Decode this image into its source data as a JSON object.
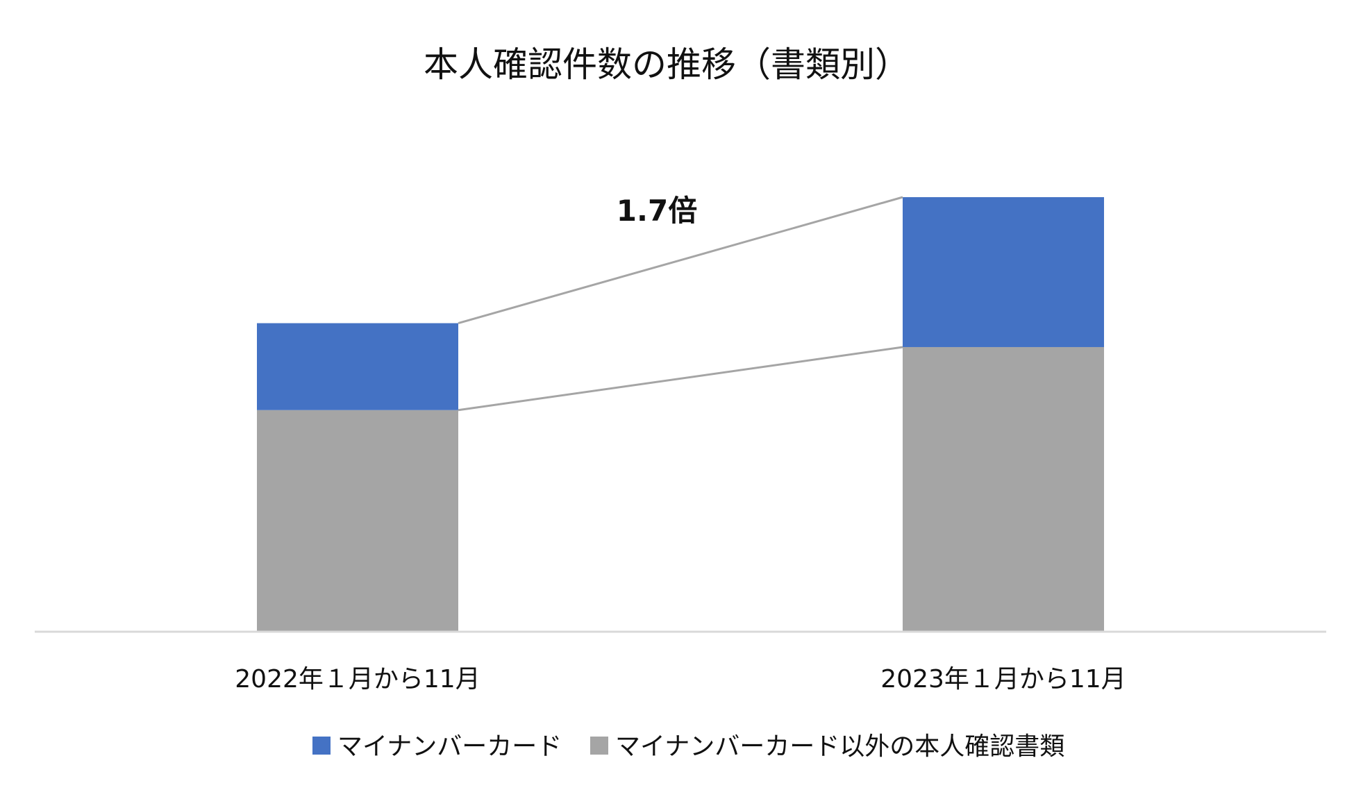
{
  "chart_data": {
    "type": "bar",
    "stacked": true,
    "title": "本人確認件数の推移（書類別）",
    "categories": [
      "2022年１月から11月",
      "2023年１月から11月"
    ],
    "series": [
      {
        "name": "マイナンバーカード以外の本人確認書類",
        "color": "#A5A5A5",
        "values": [
          51,
          65.5
        ]
      },
      {
        "name": "マイナンバーカード",
        "color": "#4472C4",
        "values": [
          20,
          34.5
        ]
      }
    ],
    "ylim": [
      0,
      100
    ],
    "annotation": "1.7倍",
    "legend": [
      "マイナンバーカード",
      "マイナンバーカード以外の本人確認書類"
    ],
    "legend_position": "bottom",
    "grid": false,
    "xlabel": "",
    "ylabel": ""
  }
}
